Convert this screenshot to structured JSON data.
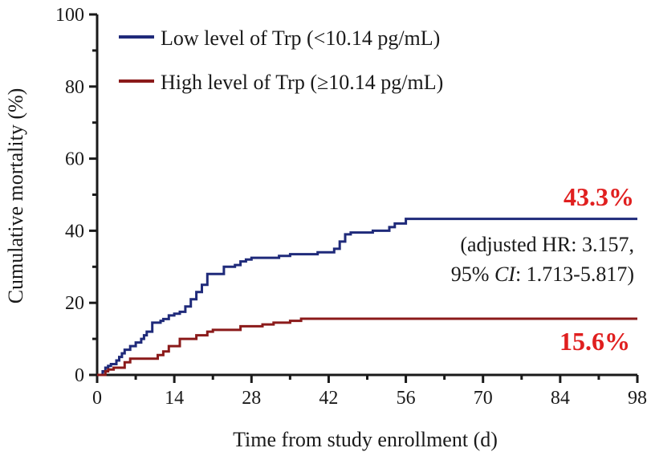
{
  "chart_data": {
    "type": "line",
    "step": true,
    "xlabel": "Time from study enrollment (d)",
    "ylabel": "Cumulative mortality (%)",
    "xlim": [
      0,
      98
    ],
    "ylim": [
      0,
      100
    ],
    "xticks": [
      0,
      14,
      28,
      42,
      56,
      70,
      84,
      98
    ],
    "yticks": [
      0,
      20,
      40,
      60,
      80,
      100
    ],
    "grid": false,
    "legend_position": "top-left",
    "series": [
      {
        "name": "Low level of Trp (<10.14 pg/mL)",
        "color": "#1f2a7a",
        "x": [
          0,
          1,
          1.5,
          2,
          2.5,
          3.5,
          4,
          4.5,
          5,
          6,
          7,
          8,
          8.5,
          9,
          10,
          11,
          11.5,
          12,
          13,
          14,
          15,
          16,
          17,
          18,
          19,
          20,
          22,
          23,
          24,
          25,
          26,
          27,
          28,
          30,
          32,
          33,
          35,
          38,
          40,
          43,
          44,
          45,
          46,
          48,
          50,
          52,
          53,
          54,
          56,
          58,
          98
        ],
        "y": [
          0,
          1,
          2,
          2.5,
          3,
          4,
          5,
          6,
          7,
          8,
          9,
          10,
          11,
          12,
          14.5,
          14.5,
          15,
          15.5,
          16.5,
          17,
          17.5,
          19,
          21,
          23,
          25,
          28,
          28,
          30,
          30,
          30.5,
          31.5,
          32,
          32.5,
          32.5,
          32.5,
          33,
          33.5,
          33.5,
          34,
          35,
          37,
          39,
          39.5,
          39.5,
          40,
          40,
          41,
          42,
          43.3,
          43.3,
          43.3
        ]
      },
      {
        "name": "High level of Trp (≥10.14 pg/mL)",
        "color": "#8b1a1a",
        "x": [
          0,
          1.5,
          2,
          3,
          4.5,
          5,
          6,
          10.5,
          11,
          12,
          13,
          15,
          16.5,
          18,
          20,
          21,
          22,
          25,
          26,
          28,
          30,
          32,
          33,
          35,
          37,
          38,
          40,
          98
        ],
        "y": [
          0,
          1,
          1.5,
          2,
          2,
          3.5,
          4.5,
          4.5,
          5.5,
          6.5,
          8,
          10,
          10,
          11,
          12,
          12.5,
          12.5,
          12.5,
          13.5,
          13.5,
          14,
          14.5,
          14.5,
          15,
          15.6,
          15.6,
          15.6,
          15.6
        ]
      }
    ],
    "annotations": {
      "low_pct": "43.3%",
      "high_pct": "15.6%",
      "hr_line1": "(adjusted HR: 3.157,",
      "hr_line2_prefix": "95% ",
      "hr_line2_ci": "CI",
      "hr_line2_suffix": ": 1.713-5.817)",
      "pct_color": "#e01f1f"
    }
  }
}
